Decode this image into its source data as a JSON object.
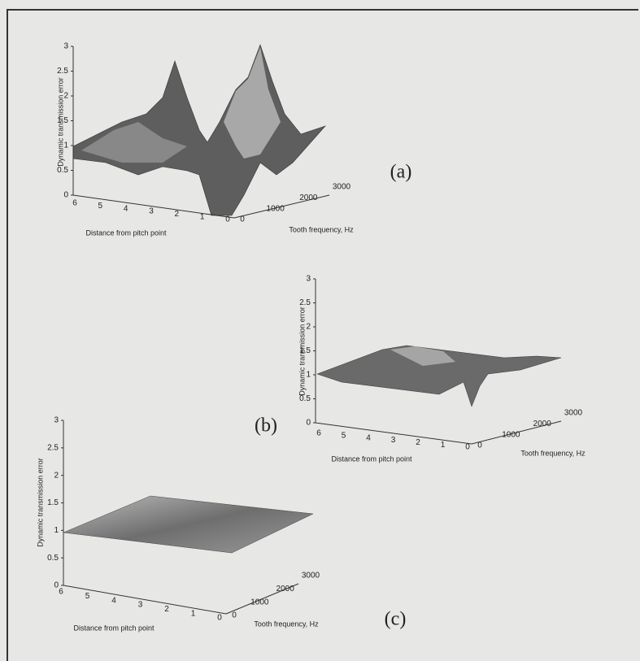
{
  "panels": [
    {
      "label": "(a)",
      "z_title": "Dynamic transmission error",
      "z_ticks": [
        "3",
        "2.5",
        "2",
        "1.5",
        "1",
        "0.5",
        "0"
      ],
      "x_title": "Distance from pitch point",
      "x_ticks": [
        "6",
        "5",
        "4",
        "3",
        "2",
        "1",
        "0"
      ],
      "y_title": "Tooth frequency, Hz",
      "y_ticks": [
        "0",
        "1000",
        "2000",
        "3000"
      ]
    },
    {
      "label": "(b)",
      "z_title": "Dynamic transmission error",
      "z_ticks": [
        "3",
        "2.5",
        "2",
        "1.5",
        "1",
        "0.5",
        "0"
      ],
      "x_title": "Distance from pitch point",
      "x_ticks": [
        "6",
        "5",
        "4",
        "3",
        "2",
        "1",
        "0"
      ],
      "y_title": "Tooth frequency, Hz",
      "y_ticks": [
        "0",
        "1000",
        "2000",
        "3000"
      ]
    },
    {
      "label": "(c)",
      "z_title": "Dynamic transmission error",
      "z_ticks": [
        "3",
        "2.5",
        "2",
        "1.5",
        "1",
        "0.5",
        "0"
      ],
      "x_title": "Distance from pitch point",
      "x_ticks": [
        "6",
        "5",
        "4",
        "3",
        "2",
        "1",
        "0"
      ],
      "y_title": "Tooth frequency, Hz",
      "y_ticks": [
        "0",
        "1000",
        "2000",
        "3000"
      ]
    }
  ]
}
